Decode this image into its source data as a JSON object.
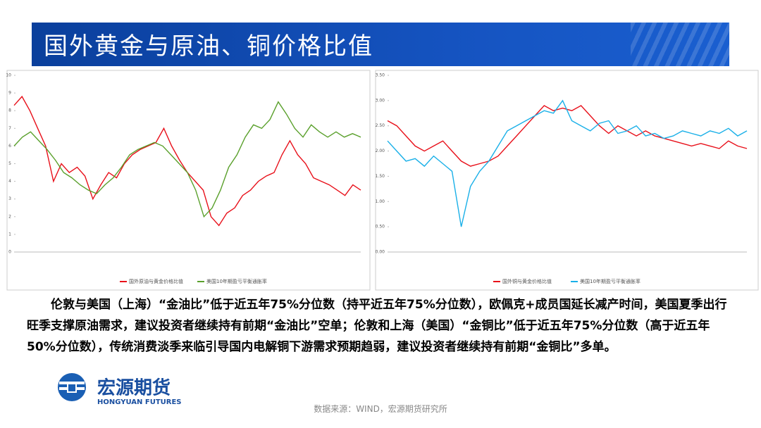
{
  "header": {
    "title": "国外黄金与原油、铜价格比值"
  },
  "chart_data": [
    {
      "type": "line",
      "ylim": [
        0,
        10
      ],
      "yticks": [
        0,
        1,
        2,
        3,
        4,
        5,
        6,
        7,
        8,
        9,
        10
      ],
      "series": [
        {
          "name": "国外原油与黄金价格比值",
          "color": "#e8101a",
          "values": [
            8.3,
            8.8,
            8.0,
            7.0,
            6.0,
            4.0,
            5.0,
            4.5,
            4.8,
            4.3,
            3.0,
            3.8,
            4.5,
            4.2,
            5.0,
            5.5,
            5.8,
            6.0,
            6.2,
            7.0,
            6.0,
            5.2,
            4.5,
            4.0,
            3.5,
            2.0,
            1.5,
            2.2,
            2.5,
            3.2,
            3.5,
            4.0,
            4.3,
            4.5,
            5.5,
            6.3,
            5.5,
            5.0,
            4.2,
            4.0,
            3.8,
            3.5,
            3.2,
            3.8,
            3.5
          ]
        },
        {
          "name": "美国10年期盈亏平衡通胀率",
          "color": "#5aa02c",
          "values": [
            6.0,
            6.5,
            6.8,
            6.3,
            5.8,
            5.2,
            4.5,
            4.2,
            3.8,
            3.5,
            3.3,
            3.8,
            4.2,
            4.8,
            5.5,
            5.8,
            6.0,
            6.2,
            6.0,
            5.5,
            5.0,
            4.5,
            3.5,
            2.0,
            2.5,
            3.5,
            4.8,
            5.5,
            6.5,
            7.2,
            7.0,
            7.5,
            8.5,
            7.8,
            7.0,
            6.5,
            7.2,
            6.8,
            6.5,
            6.8,
            6.5,
            6.7,
            6.5
          ]
        }
      ]
    },
    {
      "type": "line",
      "ylim": [
        0,
        3.5
      ],
      "yticks": [
        {
          "value": 0,
          "label": "0.00"
        },
        {
          "value": 0.5,
          "label": "0.50"
        },
        {
          "value": 1,
          "label": "1.00"
        },
        {
          "value": 1.5,
          "label": "1.50"
        },
        {
          "value": 2,
          "label": "2.00"
        },
        {
          "value": 2.5,
          "label": "2.50"
        },
        {
          "value": 3,
          "label": "3.00"
        },
        {
          "value": 3.5,
          "label": "3.50"
        }
      ],
      "series": [
        {
          "name": "国外铜与黄金价格比值",
          "color": "#e8101a",
          "values": [
            2.6,
            2.5,
            2.3,
            2.1,
            2.0,
            2.1,
            2.2,
            2.0,
            1.8,
            1.7,
            1.75,
            1.8,
            1.9,
            2.1,
            2.3,
            2.5,
            2.7,
            2.9,
            2.8,
            2.85,
            2.8,
            2.9,
            2.7,
            2.5,
            2.35,
            2.5,
            2.4,
            2.3,
            2.4,
            2.3,
            2.25,
            2.2,
            2.15,
            2.1,
            2.15,
            2.1,
            2.05,
            2.2,
            2.1,
            2.05
          ]
        },
        {
          "name": "美国10年期盈亏平衡通胀率",
          "color": "#1ab0e8",
          "values": [
            2.2,
            2.0,
            1.8,
            1.85,
            1.7,
            1.9,
            1.75,
            1.6,
            0.5,
            1.3,
            1.6,
            1.8,
            2.1,
            2.4,
            2.5,
            2.6,
            2.7,
            2.8,
            2.75,
            3.0,
            2.6,
            2.5,
            2.4,
            2.55,
            2.6,
            2.35,
            2.4,
            2.5,
            2.3,
            2.35,
            2.25,
            2.3,
            2.4,
            2.35,
            2.3,
            2.4,
            2.35,
            2.45,
            2.3,
            2.4
          ]
        }
      ]
    }
  ],
  "body": {
    "text": "伦敦与美国（上海）“金油比”低于近五年75%分位数（持平近五年75%分位数），欧佩克+成员国延长减产时间，美国夏季出行旺季支撑原油需求，建议投资者继续持有前期“金油比”空单；伦敦和上海（美国）“金铜比”低于近五年75%分位数（高于近五年50%分位数），传统消费淡季来临引导国内电解铜下游需求预期趋弱，建议投资者继续持有前期“金铜比”多单。"
  },
  "logo": {
    "name": "宏源期货",
    "english": "HONGYUAN FUTURES"
  },
  "footer": {
    "source": "数据来源：WIND，宏源期货研究所"
  }
}
